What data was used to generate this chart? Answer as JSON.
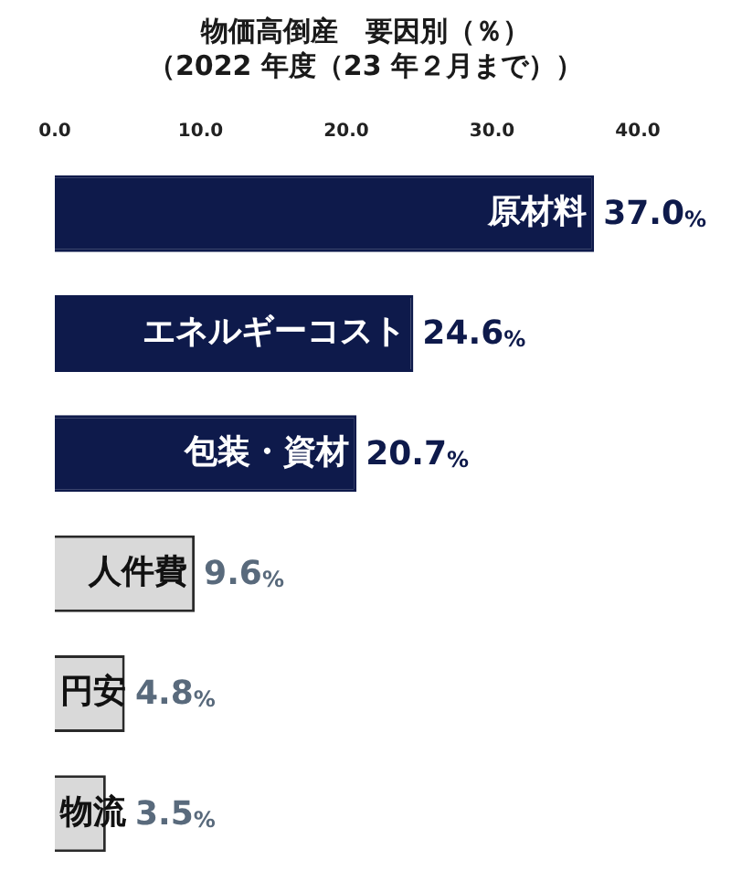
{
  "chart_data": {
    "type": "bar",
    "orientation": "horizontal",
    "title": "物価高倒産　要因別（％）",
    "subtitle": "（2022 年度（23 年２月まで））",
    "categories": [
      "原材料",
      "エネルギーコスト",
      "包装・資材",
      "人件費",
      "円安",
      "物流"
    ],
    "values": [
      37.0,
      24.6,
      20.7,
      9.6,
      4.8,
      3.5
    ],
    "colors": [
      "#0e1a4b",
      "#0e1a4b",
      "#0e1a4b",
      "#d9d9d9",
      "#d9d9d9",
      "#d9d9d9"
    ],
    "value_labels": [
      "37.0%",
      "24.6%",
      "20.7%",
      "9.6%",
      "4.8%",
      "3.5%"
    ],
    "xlim": [
      0,
      40
    ],
    "xticks": [
      {
        "value": 0,
        "label": "0.0"
      },
      {
        "value": 10,
        "label": "10.0"
      },
      {
        "value": 20,
        "label": "20.0"
      },
      {
        "value": 30,
        "label": "30.0"
      },
      {
        "value": 40,
        "label": "40.0"
      }
    ],
    "grid": false,
    "legend": false
  }
}
